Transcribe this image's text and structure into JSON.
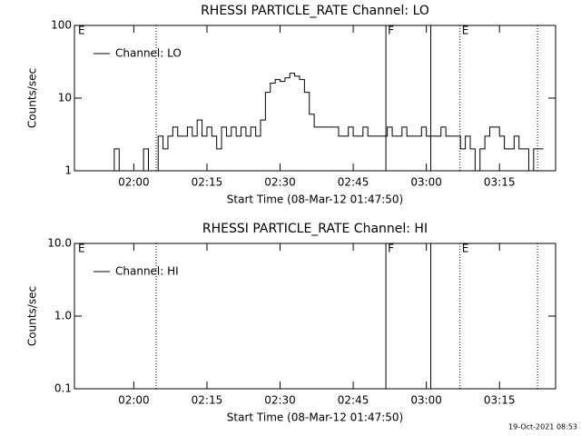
{
  "chart_data": [
    {
      "type": "line",
      "title": "RHESSI PARTICLE_RATE Channel: LO",
      "ylabel": "Counts/sec",
      "xlabel": "Start Time (08-Mar-12 01:47:50)",
      "log_y": true,
      "ylim": [
        1,
        100
      ],
      "yticks": [
        1,
        10,
        100
      ],
      "xlim": [
        107.83,
        206.5
      ],
      "xticks": [
        {
          "value": 120,
          "label": "02:00"
        },
        {
          "value": 135,
          "label": "02:15"
        },
        {
          "value": 150,
          "label": "02:30"
        },
        {
          "value": 165,
          "label": "02:45"
        },
        {
          "value": 180,
          "label": "03:00"
        },
        {
          "value": 195,
          "label": "03:15"
        }
      ],
      "vlines": [
        {
          "x": 124.6,
          "style": "dotted"
        },
        {
          "x": 171.7,
          "style": "solid"
        },
        {
          "x": 180.9,
          "style": "solid"
        },
        {
          "x": 186.9,
          "style": "dotted"
        },
        {
          "x": 202.8,
          "style": "dotted"
        }
      ],
      "annotations": [
        {
          "text": "E",
          "x": 108.2
        },
        {
          "text": "F",
          "x": 171.7
        },
        {
          "text": "E",
          "x": 186.9
        }
      ],
      "legend": "upper left",
      "series": [
        {
          "name": "Channel: LO",
          "color": "#000000",
          "x": [
            108,
            109,
            110,
            111,
            112,
            113,
            114,
            115,
            116,
            117,
            118,
            119,
            120,
            121,
            122,
            123,
            124,
            125,
            126,
            127,
            128,
            129,
            130,
            131,
            132,
            133,
            134,
            135,
            136,
            137,
            138,
            139,
            140,
            141,
            142,
            143,
            144,
            145,
            146,
            147,
            148,
            149,
            150,
            151,
            152,
            153,
            154,
            155,
            156,
            157,
            158,
            159,
            160,
            161,
            162,
            163,
            164,
            165,
            166,
            167,
            168,
            169,
            170,
            171,
            172,
            173,
            174,
            175,
            176,
            177,
            178,
            179,
            180,
            181,
            182,
            183,
            184,
            185,
            186,
            187,
            188,
            189,
            190,
            191,
            192,
            193,
            194,
            195,
            196,
            197,
            198,
            199,
            200,
            201,
            202,
            203,
            204
          ],
          "values": [
            1,
            1,
            1,
            1,
            1,
            1,
            1,
            1,
            2,
            1,
            1,
            1,
            1,
            1,
            2,
            1,
            1,
            3,
            2,
            3,
            4,
            3,
            3,
            4,
            3,
            5,
            3,
            4,
            3,
            2,
            4,
            3,
            4,
            3,
            4,
            3,
            4,
            3,
            5,
            12,
            16,
            18,
            17,
            19,
            22,
            20,
            18,
            12,
            6,
            4,
            4,
            4,
            4,
            4,
            3,
            3,
            4,
            3,
            3,
            4,
            3,
            3,
            3,
            3,
            4,
            3,
            3,
            4,
            3,
            3,
            3,
            4,
            3,
            3,
            3,
            4,
            3,
            3,
            3,
            2,
            3,
            2,
            1,
            2,
            3,
            4,
            4,
            3,
            2,
            2,
            3,
            2,
            2,
            1,
            2,
            2,
            2
          ]
        }
      ]
    },
    {
      "type": "line",
      "title": "RHESSI PARTICLE_RATE Channel: HI",
      "ylabel": "Counts/sec",
      "xlabel": "Start Time (08-Mar-12 01:47:50)",
      "log_y": true,
      "ylim": [
        0.1,
        10
      ],
      "yticks": [
        0.1,
        {
          "value": 1,
          "label": "1.0"
        },
        {
          "value": 10,
          "label": "10.0"
        }
      ],
      "xlim": [
        107.83,
        206.5
      ],
      "xticks": [
        {
          "value": 120,
          "label": "02:00"
        },
        {
          "value": 135,
          "label": "02:15"
        },
        {
          "value": 150,
          "label": "02:30"
        },
        {
          "value": 165,
          "label": "02:45"
        },
        {
          "value": 180,
          "label": "03:00"
        },
        {
          "value": 195,
          "label": "03:15"
        }
      ],
      "vlines": [
        {
          "x": 124.6,
          "style": "dotted"
        },
        {
          "x": 171.7,
          "style": "solid"
        },
        {
          "x": 180.9,
          "style": "solid"
        },
        {
          "x": 186.9,
          "style": "dotted"
        },
        {
          "x": 202.8,
          "style": "dotted"
        }
      ],
      "annotations": [
        {
          "text": "E",
          "x": 108.2
        },
        {
          "text": "F",
          "x": 171.7
        },
        {
          "text": "E",
          "x": 186.9
        }
      ],
      "legend": "upper left",
      "series": [
        {
          "name": "Channel: HI",
          "color": "#000000",
          "x": [],
          "values": []
        }
      ]
    }
  ],
  "footer": "19-Oct-2021 08:53"
}
